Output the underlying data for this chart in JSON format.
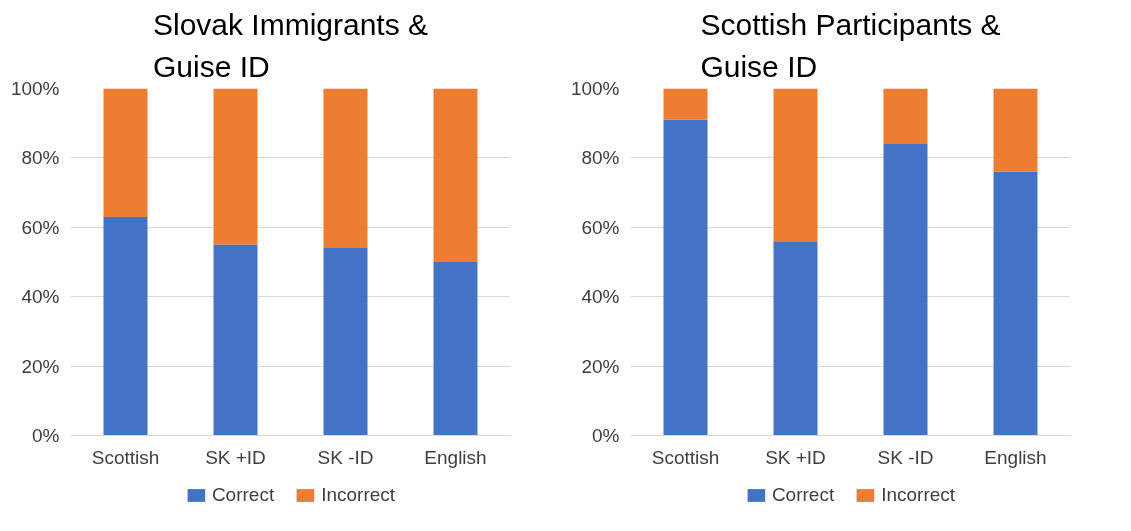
{
  "chart_data": [
    {
      "type": "bar",
      "title": "Slovak Immigrants & Guise ID",
      "categories": [
        "Scottish",
        "SK +ID",
        "SK -ID",
        "English"
      ],
      "stacked": true,
      "series": [
        {
          "name": "Correct",
          "color": "#4472c4",
          "values": [
            63,
            55,
            54,
            50
          ]
        },
        {
          "name": "Incorrect",
          "color": "#ed7d31",
          "values": [
            37,
            45,
            46,
            50
          ]
        }
      ],
      "ylim": [
        0,
        100
      ],
      "yticks": [
        {
          "value": 0,
          "label": "0%"
        },
        {
          "value": 20,
          "label": "20%"
        },
        {
          "value": 40,
          "label": "40%"
        },
        {
          "value": 60,
          "label": "60%"
        },
        {
          "value": 80,
          "label": "80%"
        },
        {
          "value": 100,
          "label": "100%"
        }
      ],
      "grid": "y",
      "legend": "bottom"
    },
    {
      "type": "bar",
      "title": "Scottish Participants & Guise ID",
      "categories": [
        "Scottish",
        "SK +ID",
        "SK -ID",
        "English"
      ],
      "stacked": true,
      "series": [
        {
          "name": "Correct",
          "color": "#4472c4",
          "values": [
            91,
            56,
            84,
            76
          ]
        },
        {
          "name": "Incorrect",
          "color": "#ed7d31",
          "values": [
            9,
            44,
            16,
            24
          ]
        }
      ],
      "ylim": [
        0,
        100
      ],
      "yticks": [
        {
          "value": 0,
          "label": "0%"
        },
        {
          "value": 20,
          "label": "20%"
        },
        {
          "value": 40,
          "label": "40%"
        },
        {
          "value": 60,
          "label": "60%"
        },
        {
          "value": 80,
          "label": "80%"
        },
        {
          "value": 100,
          "label": "100%"
        }
      ],
      "grid": "y",
      "legend": "bottom"
    }
  ]
}
